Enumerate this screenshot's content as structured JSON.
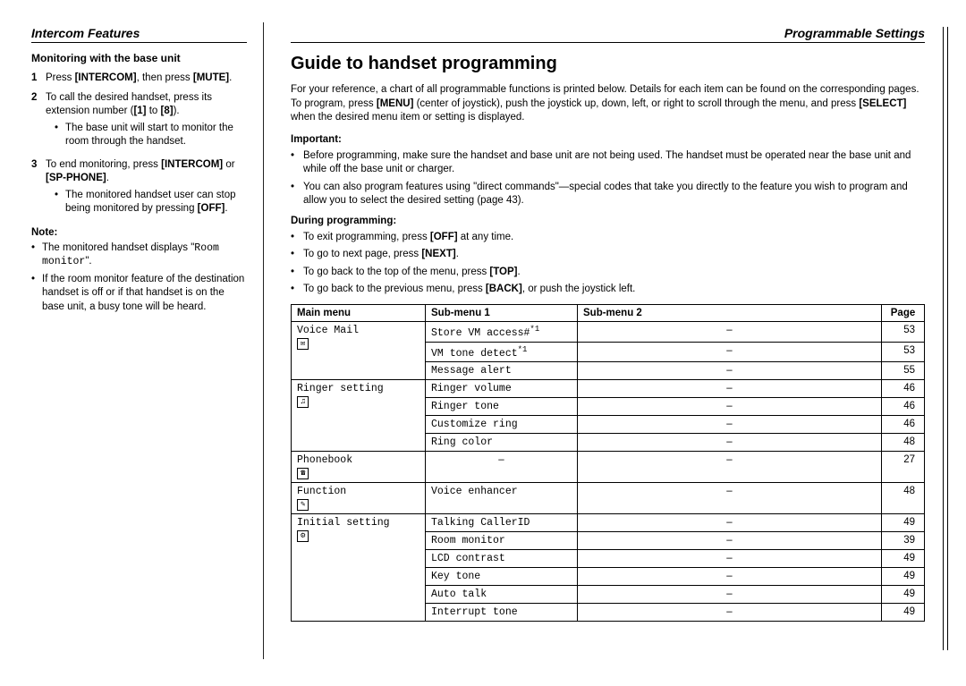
{
  "left": {
    "section": "Intercom Features",
    "subheading": "Monitoring with the base unit",
    "steps": [
      {
        "n": "1",
        "body": "Press [INTERCOM], then press [MUTE]."
      },
      {
        "n": "2",
        "body": "To call the desired handset, press its extension number ([1] to [8]).",
        "sub": "The base unit will start to monitor the room through the handset."
      },
      {
        "n": "3",
        "body": "To end monitoring, press [INTERCOM] or [SP-PHONE].",
        "sub": "The monitored handset user can stop being monitored by pressing [OFF]."
      }
    ],
    "note_label": "Note:",
    "notes": [
      "The monitored handset displays \"Room monitor\".",
      "If the room monitor feature of the destination handset is off or if that handset is on the base unit, a busy tone will be heard."
    ]
  },
  "right": {
    "section": "Programmable Settings",
    "title": "Guide to handset programming",
    "intro": "For your reference, a chart of all programmable functions is printed below. Details for each item can be found on the corresponding pages. To program, press [MENU] (center of joystick), push the joystick up, down, left, or right to scroll through the menu, and press [SELECT] when the desired menu item or setting is displayed.",
    "important_label": "Important:",
    "important": [
      "Before programming, make sure the handset and base unit are not being used. The handset must be operated near the base unit and while off the base unit or charger.",
      "You can also program features using \"direct commands\"—special codes that take you directly to the feature you wish to program and allow you to select the desired setting (page 43)."
    ],
    "during_label": "During programming:",
    "during": [
      "To exit programming, press [OFF] at any time.",
      "To go to next page, press [NEXT].",
      "To go back to the top of the menu, press [TOP].",
      "To go back to the previous menu, press [BACK], or push the joystick left."
    ],
    "table": {
      "headers": [
        "Main menu",
        "Sub-menu 1",
        "Sub-menu 2",
        "Page"
      ],
      "rows": [
        {
          "main": "Voice Mail",
          "icon": "✉",
          "sub1": "Store VM access#",
          "sup": "*1",
          "sub2": "–",
          "page": "53",
          "rowspan": 3
        },
        {
          "sub1": "VM tone detect",
          "sup": "*1",
          "sub2": "–",
          "page": "53"
        },
        {
          "sub1": "Message alert",
          "sub2": "–",
          "page": "55"
        },
        {
          "main": "Ringer setting",
          "icon": "♫",
          "sub1": "Ringer volume",
          "sub2": "–",
          "page": "46",
          "rowspan": 4
        },
        {
          "sub1": "Ringer tone",
          "sub2": "–",
          "page": "46"
        },
        {
          "sub1": "Customize ring",
          "sub2": "–",
          "page": "46"
        },
        {
          "sub1": "Ring color",
          "sub2": "–",
          "page": "48"
        },
        {
          "main": "Phonebook",
          "icon": "☎",
          "sub1": "–",
          "sub2": "–",
          "page": "27",
          "rowspan": 1,
          "sub1center": true
        },
        {
          "main": "Function",
          "icon": "✎",
          "sub1": "Voice enhancer",
          "sub2": "–",
          "page": "48",
          "rowspan": 1
        },
        {
          "main": "Initial setting",
          "icon": "⚙",
          "sub1": "Talking CallerID",
          "sub2": "–",
          "page": "49",
          "rowspan": 6
        },
        {
          "sub1": "Room monitor",
          "sub2": "–",
          "page": "39"
        },
        {
          "sub1": "LCD contrast",
          "sub2": "–",
          "page": "49"
        },
        {
          "sub1": "Key tone",
          "sub2": "–",
          "page": "49"
        },
        {
          "sub1": "Auto talk",
          "sub2": "–",
          "page": "49"
        },
        {
          "sub1": "Interrupt tone",
          "sub2": "–",
          "page": "49"
        }
      ]
    }
  }
}
